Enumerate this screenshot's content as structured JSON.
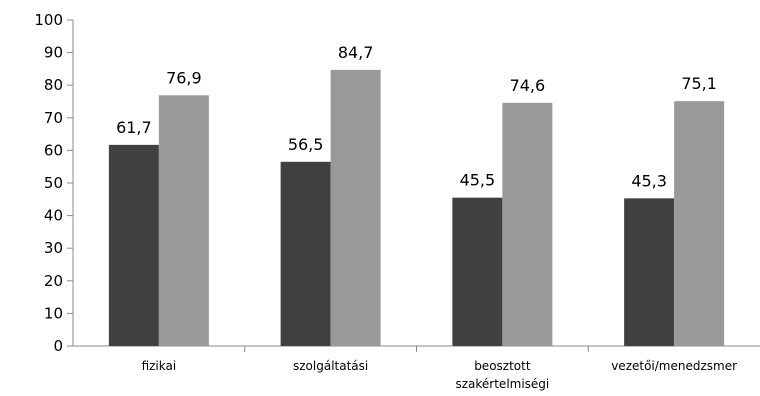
{
  "chart_data": {
    "type": "bar",
    "title": "",
    "xlabel": "",
    "ylabel": "",
    "categories": [
      [
        "fizikai"
      ],
      [
        "szolgáltatási"
      ],
      [
        "beosztott",
        "szakértelmiségi"
      ],
      [
        "vezetői/menedzsmer"
      ]
    ],
    "series": [
      {
        "values": [
          61.7,
          56.5,
          45.5,
          45.3
        ],
        "value_labels": [
          "61,7",
          "56,5",
          "45,5",
          "45,3"
        ],
        "color": "#404040"
      },
      {
        "values": [
          76.9,
          84.7,
          74.6,
          75.1
        ],
        "value_labels": [
          "76,9",
          "84,7",
          "74,6",
          "75,1"
        ],
        "color": "#999999"
      }
    ],
    "ylim": [
      0,
      100
    ],
    "yticks": [
      "0",
      "10",
      "20",
      "30",
      "40",
      "50",
      "60",
      "70",
      "80",
      "90",
      "100"
    ],
    "grid": false,
    "legend": "none",
    "axis_color": "#888888"
  }
}
